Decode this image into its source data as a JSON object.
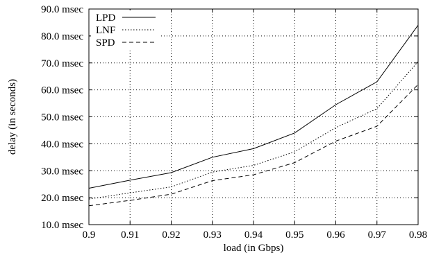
{
  "chart_data": {
    "type": "line",
    "title": "",
    "xlabel": "load (in Gbps)",
    "ylabel": "delay (in seconds)",
    "xlim": [
      0.9,
      0.98
    ],
    "ylim": [
      10.0,
      90.0
    ],
    "x": [
      0.9,
      0.91,
      0.92,
      0.93,
      0.94,
      0.95,
      0.96,
      0.97,
      0.98
    ],
    "x_tick_labels": [
      "0.9",
      "0.91",
      "0.92",
      "0.93",
      "0.94",
      "0.95",
      "0.96",
      "0.97",
      "0.98"
    ],
    "y_ticks": [
      10,
      20,
      30,
      40,
      50,
      60,
      70,
      80,
      90
    ],
    "y_tick_labels": [
      "10.0 msec",
      "20.0 msec",
      "30.0 msec",
      "40.0 msec",
      "50.0 msec",
      "60.0 msec",
      "70.0 msec",
      "80.0 msec",
      "90.0 msec"
    ],
    "grid": true,
    "grid_style": "dotted",
    "legend_position": "top-left",
    "series": [
      {
        "name": "LPD",
        "line_style": "solid",
        "color": "#000000",
        "values": [
          23.5,
          26.5,
          29.3,
          35.0,
          38.2,
          44.0,
          54.5,
          63.0,
          84.0
        ]
      },
      {
        "name": "LNF",
        "line_style": "dotted",
        "color": "#000000",
        "values": [
          19.5,
          21.8,
          24.0,
          29.5,
          32.0,
          37.0,
          46.0,
          53.0,
          70.5
        ]
      },
      {
        "name": "SPD",
        "line_style": "dashed",
        "color": "#000000",
        "values": [
          17.0,
          19.0,
          21.3,
          26.3,
          28.5,
          33.0,
          41.0,
          46.5,
          62.0
        ]
      }
    ]
  }
}
